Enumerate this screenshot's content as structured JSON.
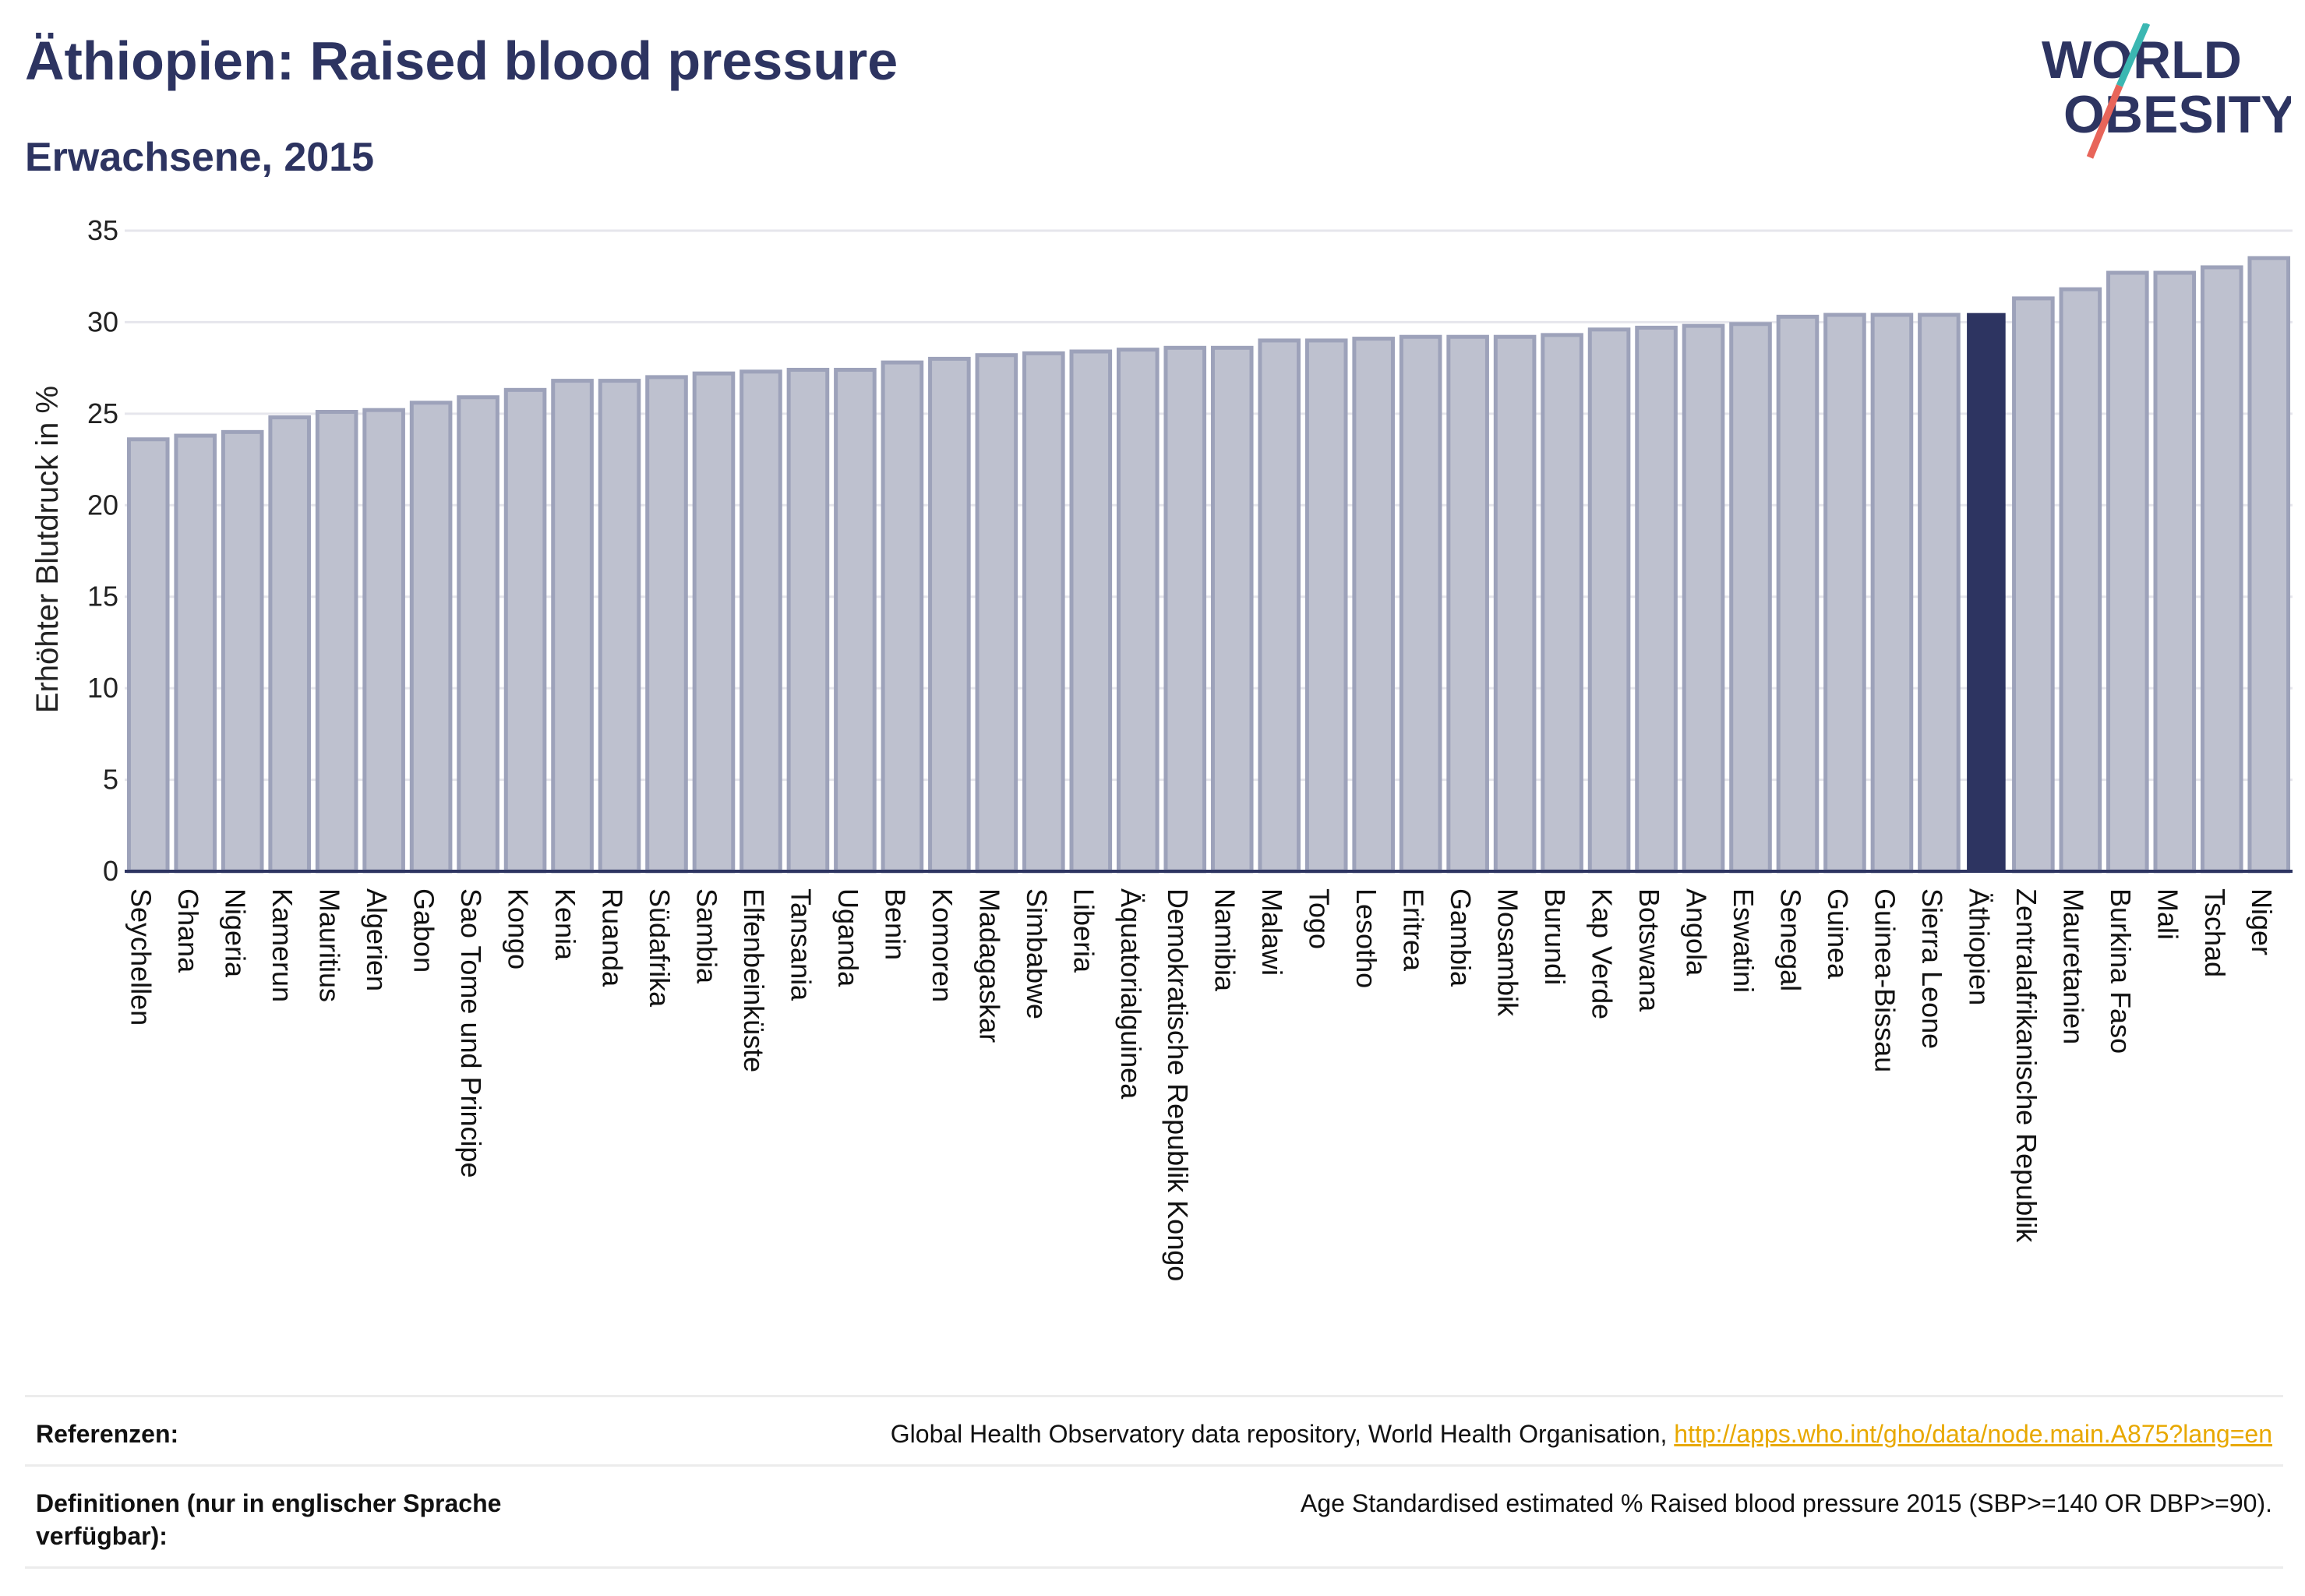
{
  "header": {
    "title": "Äthiopien: Raised blood pressure",
    "subtitle": "Erwachsene, 2015"
  },
  "logo": {
    "line1": "WORLD",
    "line2": "OBESITY"
  },
  "chart_data": {
    "type": "bar",
    "title": "Äthiopien: Raised blood pressure",
    "subtitle": "Erwachsene, 2015",
    "ylabel": "Erhöhter Blutdruck in %",
    "xlabel": "",
    "ylim": [
      0,
      35
    ],
    "yticks": [
      0,
      5,
      10,
      15,
      20,
      25,
      30,
      35
    ],
    "grid": true,
    "highlight": "Äthiopien",
    "colors": {
      "bar": "#bec1cf",
      "bar_edge": "#9da2ba",
      "highlight": "#2d3461",
      "axis": "#2d3461"
    },
    "categories": [
      "Seychellen",
      "Ghana",
      "Nigeria",
      "Kamerun",
      "Mauritius",
      "Algerien",
      "Gabon",
      "Sao Tome und Principe",
      "Kongo",
      "Kenia",
      "Ruanda",
      "Südafrika",
      "Sambia",
      "Elfenbeinküste",
      "Tansania",
      "Uganda",
      "Benin",
      "Komoren",
      "Madagaskar",
      "Simbabwe",
      "Liberia",
      "Äquatorialguinea",
      "Demokratische Republik Kongo",
      "Namibia",
      "Malawi",
      "Togo",
      "Lesotho",
      "Eritrea",
      "Gambia",
      "Mosambik",
      "Burundi",
      "Kap Verde",
      "Botswana",
      "Angola",
      "Eswatini",
      "Senegal",
      "Guinea",
      "Guinea-Bissau",
      "Sierra Leone",
      "Äthiopien",
      "Zentralafrikanische Republik",
      "Mauretanien",
      "Burkina Faso",
      "Mali",
      "Tschad",
      "Niger"
    ],
    "values": [
      23.6,
      23.8,
      24.0,
      24.8,
      25.1,
      25.2,
      25.6,
      25.9,
      26.3,
      26.8,
      26.8,
      27.0,
      27.2,
      27.3,
      27.4,
      27.4,
      27.8,
      28.0,
      28.2,
      28.3,
      28.4,
      28.5,
      28.6,
      28.6,
      29.0,
      29.0,
      29.1,
      29.2,
      29.2,
      29.2,
      29.3,
      29.6,
      29.7,
      29.8,
      29.9,
      30.3,
      30.4,
      30.4,
      30.4,
      30.5,
      31.3,
      31.8,
      32.7,
      32.7,
      33.0,
      33.5
    ]
  },
  "footer": {
    "references_label": "Referenzen:",
    "references_text": "Global Health Observatory data repository, World Health Organisation, ",
    "references_link": "http://apps.who.int/gho/data/node.main.A875?lang=en",
    "definitions_label": "Definitionen (nur in englischer Sprache verfügbar):",
    "definitions_text": "Age Standardised estimated % Raised blood pressure 2015 (SBP>=140 OR DBP>=90)."
  }
}
